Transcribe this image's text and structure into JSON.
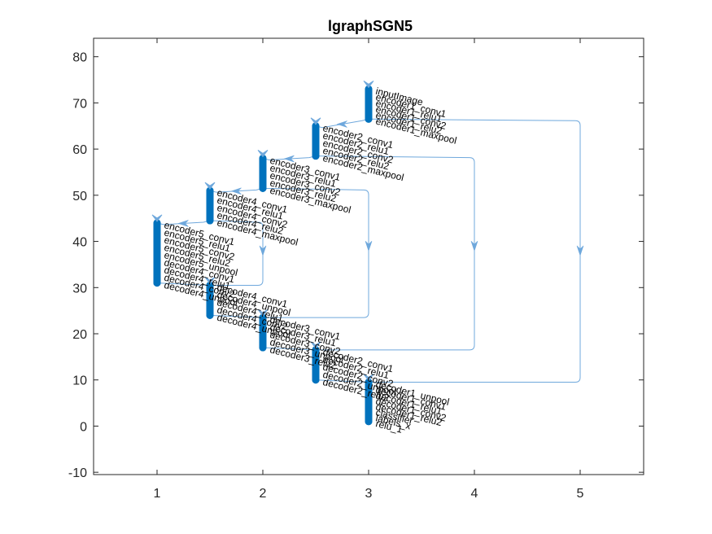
{
  "title": "lgraphSGN5",
  "colors": {
    "node": "#0072BD",
    "edge": "#6FA8DC",
    "axis": "#262626"
  },
  "chart_data": {
    "type": "layered-graph",
    "xlim": [
      0.4,
      5.6
    ],
    "ylim": [
      -10.5,
      84
    ],
    "xticks": [
      "1",
      "2",
      "3",
      "4",
      "5"
    ],
    "yticks": [
      "-10",
      "0",
      "10",
      "20",
      "30",
      "40",
      "50",
      "60",
      "70",
      "80"
    ],
    "columns": [
      {
        "x": 3.0,
        "y_top": 73,
        "y_bottom": 66.5,
        "labels": [
          "inputImage",
          "encoder1_conv1",
          "encoder1_relu1",
          "encoder1_conv2",
          "encoder1_relu2",
          "encoder1_maxpool"
        ]
      },
      {
        "x": 2.5,
        "y_top": 65,
        "y_bottom": 58.5,
        "labels": [
          "encoder2_conv1",
          "encoder2_relu1",
          "encoder2_conv2",
          "encoder2_relu2",
          "encoder2_maxpool"
        ]
      },
      {
        "x": 2.0,
        "y_top": 58,
        "y_bottom": 51.5,
        "labels": [
          "encoder3_conv1",
          "encoder3_relu1",
          "encoder3_conv2",
          "encoder3_relu2",
          "encoder3_maxpool"
        ]
      },
      {
        "x": 1.5,
        "y_top": 51,
        "y_bottom": 44.5,
        "labels": [
          "encoder4_conv1",
          "encoder4_relu1",
          "encoder4_conv2",
          "encoder4_relu2",
          "encoder4_maxpool"
        ]
      },
      {
        "x": 1.0,
        "y_top": 44,
        "y_bottom": 31,
        "labels": [
          "encoder5_conv1",
          "encoder5_relu1",
          "encoder5_conv2",
          "encoder5_relu2",
          "encoder5_unpool",
          "decoder4_conv1",
          "decoder4_relu1",
          "decoder4_conv2",
          "decoder4_unpool"
        ]
      },
      {
        "x": 1.5,
        "y_top": 30.5,
        "y_bottom": 24,
        "labels": [
          "decoder4_conv1",
          "decoder4_unpool",
          "decoder4_relu1",
          "decoder4_conv2",
          "decoder4_unpool"
        ]
      },
      {
        "x": 2.0,
        "y_top": 23.5,
        "y_bottom": 17,
        "labels": [
          "decoder3_conv1",
          "decoder3_relu1",
          "decoder3_conv2",
          "decoder3_unpool",
          "decoder3_relu2"
        ]
      },
      {
        "x": 2.5,
        "y_top": 16.5,
        "y_bottom": 10,
        "labels": [
          "decoder2_conv1",
          "decoder2_relu1",
          "decoder2_conv2",
          "decoder2_unpool",
          "decoder2_relu2"
        ]
      },
      {
        "x": 3.0,
        "y_top": 9.5,
        "y_bottom": 1,
        "labels": [
          "decoder1_unpool",
          "decoder1_conv1",
          "decoder1_relu1",
          "decoder1_conv2",
          "decoder1_relu2",
          "classifier",
          "labels_x",
          "relu_1"
        ]
      }
    ],
    "skip_edges": [
      {
        "from": [
          3.0,
          66.5
        ],
        "side_x": 5.0,
        "to": [
          3.0,
          9.5
        ],
        "arrow_y": 38
      },
      {
        "from": [
          2.5,
          58.5
        ],
        "side_x": 4.0,
        "to": [
          2.5,
          16.5
        ],
        "arrow_y": 39
      },
      {
        "from": [
          2.0,
          51.5
        ],
        "side_x": 3.0,
        "to": [
          2.0,
          23.5
        ],
        "arrow_y": 39
      },
      {
        "from": [
          1.5,
          44.5
        ],
        "side_x": 2.0,
        "to": [
          1.5,
          30.5
        ],
        "arrow_y": 38
      }
    ]
  }
}
